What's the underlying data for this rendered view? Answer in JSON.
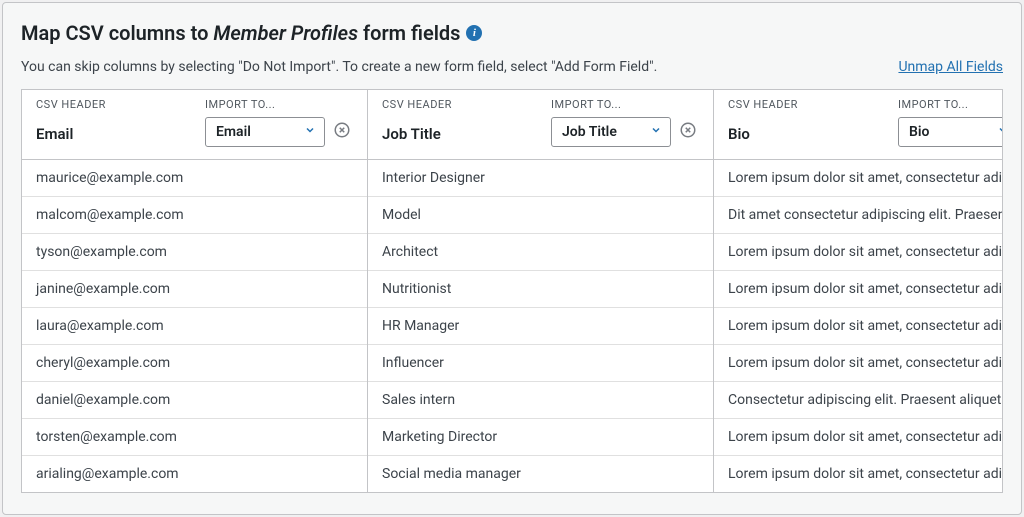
{
  "header": {
    "title_prefix": "Map CSV columns to ",
    "title_em": "Member Profiles",
    "title_suffix": " form fields",
    "info_tooltip": "i",
    "subtext": "You can skip columns by selecting \"Do Not Import\". To create a new form field, select \"Add Form Field\".",
    "unmap_link": "Unmap All Fields"
  },
  "labels": {
    "csv_header": "CSV HEADER",
    "import_to": "IMPORT TO..."
  },
  "columns": [
    {
      "csv_name": "Email",
      "mapped_to": "Email",
      "rows": [
        "maurice@example.com",
        "malcom@example.com",
        "tyson@example.com",
        "janine@example.com",
        "laura@example.com",
        "cheryl@example.com",
        "daniel@example.com",
        "torsten@example.com",
        "arialing@example.com"
      ]
    },
    {
      "csv_name": "Job Title",
      "mapped_to": "Job Title",
      "rows": [
        "Interior Designer",
        "Model",
        "Architect",
        "Nutritionist",
        "HR Manager",
        "Influencer",
        "Sales intern",
        "Marketing Director",
        "Social media manager"
      ]
    },
    {
      "csv_name": "Bio",
      "mapped_to": "Bio",
      "rows": [
        "Lorem ipsum dolor sit amet, consectetur adipiscing",
        "Dit amet consectetur adipiscing elit. Praesent",
        "Lorem ipsum dolor sit amet, consectetur adipiscing",
        "Lorem ipsum dolor sit amet, consectetur adipiscing",
        "Lorem ipsum dolor sit amet, consectetur adipiscing",
        "Lorem ipsum dolor sit amet, consectetur adipiscing",
        "Consectetur adipiscing elit. Praesent aliquet",
        "Lorem ipsum dolor sit amet, consectetur adipiscing",
        "Lorem ipsum dolor sit amet, consectetur adipiscing"
      ]
    }
  ],
  "styling": {
    "panel_bg": "#f6f7f7",
    "panel_border": "#c3c4c7",
    "title_fontsize": 20,
    "subtext_fontsize": 14,
    "link_color": "#2271b1",
    "info_icon_bg": "#2271b1",
    "select_border": "#8c8f94",
    "select_chevron_color": "#2271b1",
    "cell_border": "#e0e0e0",
    "col_min_width": 346,
    "label_fontsize": 11,
    "cell_fontsize": 14,
    "text_color": "#1d2327",
    "muted_text_color": "#50575e"
  }
}
